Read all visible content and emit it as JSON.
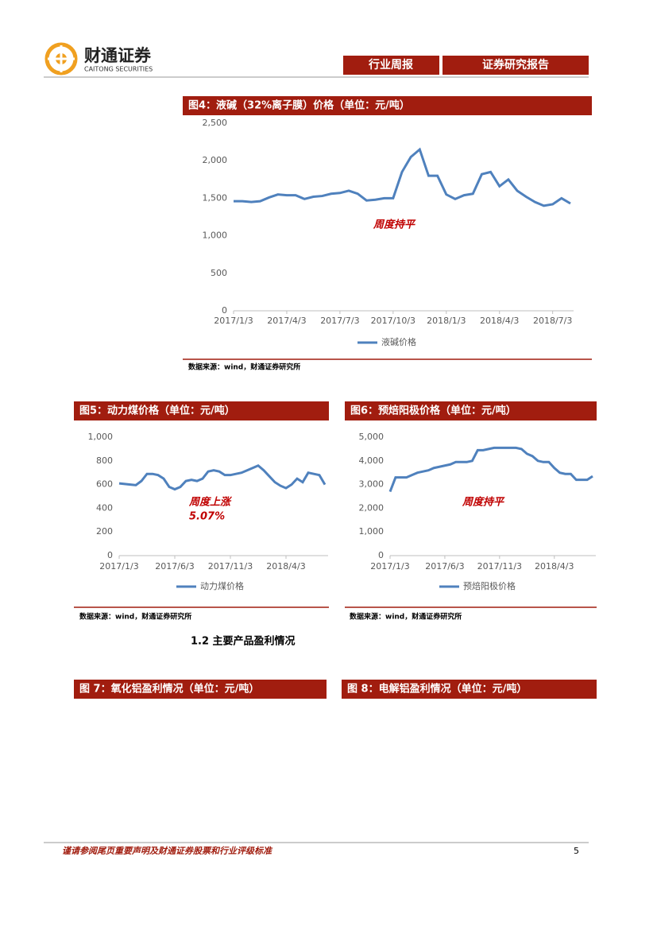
{
  "header": {
    "logo_cn": "财通证券",
    "logo_en": "CAITONG SECURITIES",
    "tags": [
      "行业周报",
      "证券研究报告"
    ]
  },
  "chart_data": [
    {
      "type": "line",
      "title": "图4：液碱（32%离子膜）价格（单位：元/吨）",
      "categories": [
        "2017/1/3",
        null,
        null,
        null,
        null,
        null,
        "2017/4/3",
        null,
        null,
        null,
        null,
        null,
        "2017/7/3",
        null,
        null,
        null,
        null,
        null,
        "2017/10/3",
        null,
        null,
        null,
        null,
        null,
        "2018/1/3",
        null,
        null,
        null,
        null,
        null,
        "2018/4/3",
        null,
        null,
        null,
        null,
        null,
        "2018/7/3",
        null,
        null
      ],
      "series": [
        {
          "name": "液碱价格",
          "color": "#4f81bd",
          "values": [
            1460,
            1460,
            1450,
            1460,
            1510,
            1550,
            1540,
            1540,
            1490,
            1520,
            1530,
            1560,
            1570,
            1600,
            1560,
            1470,
            1480,
            1500,
            1500,
            1850,
            2050,
            2150,
            1800,
            1800,
            1550,
            1490,
            1540,
            1560,
            1820,
            1850,
            1660,
            1750,
            1600,
            1520,
            1450,
            1400,
            1420,
            1500,
            1430
          ]
        }
      ],
      "ylim": [
        0,
        2500
      ],
      "yticks": [
        0,
        500,
        {
          "value": 1000,
          "label": "1,000"
        },
        {
          "value": 1500,
          "label": "1,500"
        },
        {
          "value": 2000,
          "label": "2,000"
        },
        {
          "value": 2500,
          "label": "2,500"
        }
      ],
      "annotation": [
        "周度持平"
      ],
      "source": "数据来源：wind，财通证券研究所"
    },
    {
      "type": "line",
      "title": "图5：动力煤价格（单位：元/吨）",
      "categories": [
        "2017/1/3",
        null,
        null,
        null,
        null,
        null,
        null,
        null,
        null,
        null,
        "2017/6/3",
        null,
        null,
        null,
        null,
        null,
        null,
        null,
        null,
        null,
        "2017/11/3",
        null,
        null,
        null,
        null,
        null,
        null,
        null,
        null,
        null,
        "2018/4/3",
        null,
        null,
        null,
        null,
        null,
        null,
        null
      ],
      "series": [
        {
          "name": "动力煤价格",
          "color": "#4f81bd",
          "values": [
            610,
            605,
            600,
            595,
            630,
            690,
            690,
            680,
            650,
            580,
            560,
            580,
            630,
            640,
            630,
            650,
            710,
            720,
            710,
            680,
            680,
            690,
            700,
            720,
            740,
            760,
            720,
            670,
            620,
            590,
            570,
            600,
            650,
            620,
            700,
            690,
            680,
            600
          ]
        }
      ],
      "ylim": [
        0,
        1000
      ],
      "yticks": [
        0,
        200,
        400,
        600,
        800,
        {
          "value": 1000,
          "label": "1,000"
        }
      ],
      "annotation": [
        "周度上涨",
        "5.07%"
      ],
      "source": "数据来源：wind，财通证券研究所"
    },
    {
      "type": "line",
      "title": "图6：预焙阳极价格（单位：元/吨）",
      "categories": [
        "2017/1/3",
        null,
        null,
        null,
        null,
        null,
        null,
        null,
        null,
        null,
        "2017/6/3",
        null,
        null,
        null,
        null,
        null,
        null,
        null,
        null,
        null,
        "2017/11/3",
        null,
        null,
        null,
        null,
        null,
        null,
        null,
        null,
        null,
        "2018/4/3",
        null,
        null,
        null,
        null,
        null,
        null,
        null
      ],
      "series": [
        {
          "name": "预焙阳极价格",
          "color": "#4f81bd",
          "values": [
            2700,
            3300,
            3300,
            3300,
            3400,
            3500,
            3550,
            3600,
            3700,
            3750,
            3800,
            3850,
            3950,
            3950,
            3950,
            4000,
            4450,
            4450,
            4500,
            4550,
            4550,
            4550,
            4550,
            4550,
            4500,
            4300,
            4200,
            4000,
            3950,
            3950,
            3700,
            3500,
            3450,
            3450,
            3200,
            3200,
            3200,
            3350
          ]
        }
      ],
      "ylim": [
        0,
        5000
      ],
      "yticks": [
        0,
        {
          "value": 1000,
          "label": "1,000"
        },
        {
          "value": 2000,
          "label": "2,000"
        },
        {
          "value": 3000,
          "label": "3,000"
        },
        {
          "value": 4000,
          "label": "4,000"
        },
        {
          "value": 5000,
          "label": "5,000"
        }
      ],
      "annotation": [
        "周度持平"
      ],
      "source": "数据来源：wind，财通证券研究所"
    }
  ],
  "section_heading": "1.2  主要产品盈利情况",
  "figures": [
    {
      "title": "图 7：氧化铝盈利情况（单位：元/吨）"
    },
    {
      "title": "图 8：电解铝盈利情况（单位：元/吨）"
    }
  ],
  "footer": {
    "disclaimer": "谨请参阅尾页重要声明及财通证券股票和行业评级标准",
    "page": 5
  }
}
